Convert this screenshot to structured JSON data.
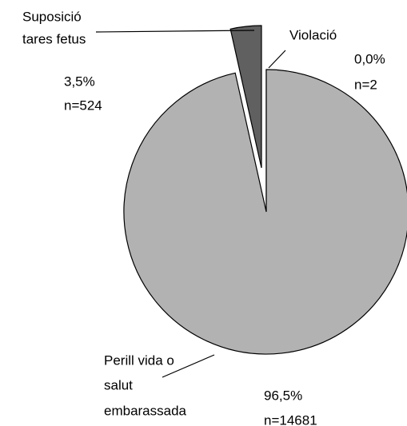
{
  "chart_data": {
    "type": "pie",
    "categories": [
      [
        "Violació"
      ],
      [
        "Perill vida o",
        "salut",
        "embarassada"
      ],
      [
        "Suposició",
        "tares fetus"
      ]
    ],
    "values": [
      0.0,
      96.5,
      3.5
    ],
    "value_labels": [
      "0,0%",
      "96,5%",
      "3,5%"
    ],
    "counts": [
      2,
      14681,
      524
    ],
    "count_labels": [
      "n=2",
      "n=14681",
      "n=524"
    ],
    "colors": [
      "#ffffff",
      "#b2b2b2",
      "#606060"
    ]
  }
}
